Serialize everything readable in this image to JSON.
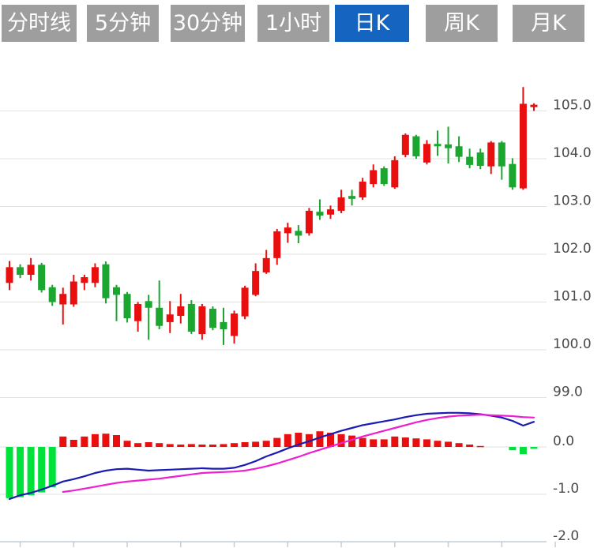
{
  "toolbar": {
    "tabs": [
      {
        "label": "分时线",
        "active": false
      },
      {
        "label": "5分钟",
        "active": false
      },
      {
        "label": "30分钟",
        "active": false
      },
      {
        "label": "1小时",
        "active": false
      },
      {
        "label": "日K",
        "active": true
      },
      {
        "label": "周K",
        "active": false
      },
      {
        "label": "月K",
        "active": false
      }
    ]
  },
  "colors": {
    "up": "#ea0f0f",
    "down": "#1ba62f",
    "macd_up": "#ea0f0f",
    "macd_down": "#00e13c",
    "dif_line": "#1b1bb4",
    "dea_line": "#ee1fd0",
    "grid": "#e2e2e2",
    "axis": "#c3cdd6",
    "label": "#4a4a4a",
    "tab_bg": "#9e9e9e",
    "tab_active_bg": "#1565c0",
    "tab_text": "#ffffff",
    "background": "#ffffff"
  },
  "chart_data": {
    "type": "candlestick",
    "title": "",
    "legend_position": "none",
    "grid": true,
    "price_axis": {
      "ticks": [
        105.0,
        104.0,
        103.0,
        102.0,
        101.0,
        100.0,
        99.0
      ],
      "tick_labels": [
        "105.0",
        "104.0",
        "103.0",
        "102.0",
        "101.0",
        "100.0",
        "99.0"
      ],
      "range": [
        98.6,
        105.9
      ]
    },
    "candles": [
      {
        "o": 101.4,
        "h": 101.86,
        "l": 101.25,
        "c": 101.73
      },
      {
        "o": 101.73,
        "h": 101.79,
        "l": 101.5,
        "c": 101.57
      },
      {
        "o": 101.57,
        "h": 101.92,
        "l": 101.45,
        "c": 101.78
      },
      {
        "o": 101.78,
        "h": 101.82,
        "l": 101.2,
        "c": 101.25
      },
      {
        "o": 101.31,
        "h": 101.36,
        "l": 100.92,
        "c": 101.0
      },
      {
        "o": 100.95,
        "h": 101.3,
        "l": 100.53,
        "c": 101.17
      },
      {
        "o": 100.95,
        "h": 101.57,
        "l": 100.9,
        "c": 101.43
      },
      {
        "o": 101.4,
        "h": 101.57,
        "l": 101.25,
        "c": 101.52
      },
      {
        "o": 101.4,
        "h": 101.81,
        "l": 101.31,
        "c": 101.73
      },
      {
        "o": 101.79,
        "h": 101.85,
        "l": 100.97,
        "c": 101.08
      },
      {
        "o": 101.31,
        "h": 101.36,
        "l": 100.6,
        "c": 101.15
      },
      {
        "o": 101.17,
        "h": 101.21,
        "l": 100.57,
        "c": 100.66
      },
      {
        "o": 100.6,
        "h": 101.0,
        "l": 100.38,
        "c": 100.96
      },
      {
        "o": 101.02,
        "h": 101.15,
        "l": 100.21,
        "c": 100.88
      },
      {
        "o": 100.88,
        "h": 101.45,
        "l": 100.43,
        "c": 100.5
      },
      {
        "o": 100.58,
        "h": 101.02,
        "l": 100.35,
        "c": 100.74
      },
      {
        "o": 100.71,
        "h": 101.17,
        "l": 100.55,
        "c": 100.91
      },
      {
        "o": 100.96,
        "h": 101.04,
        "l": 100.33,
        "c": 100.38
      },
      {
        "o": 100.33,
        "h": 100.96,
        "l": 100.21,
        "c": 100.91
      },
      {
        "o": 100.86,
        "h": 100.91,
        "l": 100.41,
        "c": 100.46
      },
      {
        "o": 100.58,
        "h": 100.88,
        "l": 100.1,
        "c": 100.43
      },
      {
        "o": 100.29,
        "h": 100.82,
        "l": 100.13,
        "c": 100.76
      },
      {
        "o": 100.7,
        "h": 101.34,
        "l": 100.64,
        "c": 101.3
      },
      {
        "o": 101.15,
        "h": 101.81,
        "l": 101.12,
        "c": 101.65
      },
      {
        "o": 101.62,
        "h": 102.09,
        "l": 101.59,
        "c": 101.92
      },
      {
        "o": 101.92,
        "h": 102.53,
        "l": 101.78,
        "c": 102.48
      },
      {
        "o": 102.44,
        "h": 102.66,
        "l": 102.24,
        "c": 102.56
      },
      {
        "o": 102.49,
        "h": 102.61,
        "l": 102.23,
        "c": 102.39
      },
      {
        "o": 102.44,
        "h": 102.97,
        "l": 102.39,
        "c": 102.91
      },
      {
        "o": 102.89,
        "h": 103.15,
        "l": 102.72,
        "c": 102.81
      },
      {
        "o": 102.83,
        "h": 103.02,
        "l": 102.74,
        "c": 102.94
      },
      {
        "o": 102.91,
        "h": 103.35,
        "l": 102.86,
        "c": 103.19
      },
      {
        "o": 103.22,
        "h": 103.35,
        "l": 103.02,
        "c": 103.16
      },
      {
        "o": 103.19,
        "h": 103.6,
        "l": 103.14,
        "c": 103.52
      },
      {
        "o": 103.47,
        "h": 103.88,
        "l": 103.4,
        "c": 103.76
      },
      {
        "o": 103.8,
        "h": 103.84,
        "l": 103.43,
        "c": 103.47
      },
      {
        "o": 103.4,
        "h": 104.05,
        "l": 103.37,
        "c": 103.97
      },
      {
        "o": 104.08,
        "h": 104.53,
        "l": 104.03,
        "c": 104.5
      },
      {
        "o": 104.47,
        "h": 104.5,
        "l": 104.0,
        "c": 104.05
      },
      {
        "o": 103.92,
        "h": 104.39,
        "l": 103.88,
        "c": 104.31
      },
      {
        "o": 104.31,
        "h": 104.59,
        "l": 104.06,
        "c": 104.26
      },
      {
        "o": 104.3,
        "h": 104.67,
        "l": 103.9,
        "c": 104.22
      },
      {
        "o": 104.26,
        "h": 104.47,
        "l": 103.93,
        "c": 104.04
      },
      {
        "o": 104.04,
        "h": 104.21,
        "l": 103.8,
        "c": 103.87
      },
      {
        "o": 104.13,
        "h": 104.21,
        "l": 103.78,
        "c": 103.85
      },
      {
        "o": 103.84,
        "h": 104.37,
        "l": 103.68,
        "c": 104.34
      },
      {
        "o": 104.34,
        "h": 104.37,
        "l": 103.56,
        "c": 103.84
      },
      {
        "o": 103.89,
        "h": 104.01,
        "l": 103.35,
        "c": 103.4
      },
      {
        "o": 103.38,
        "h": 105.5,
        "l": 103.35,
        "c": 105.15
      },
      {
        "o": 105.08,
        "h": 105.16,
        "l": 105.0,
        "c": 105.13
      }
    ],
    "macd": {
      "ticks": [
        0.0,
        -1.0,
        -2.0
      ],
      "tick_labels": [
        "0.0",
        "-1.0",
        "-2.0"
      ],
      "histogram": [
        -1.08,
        -1.06,
        -1.02,
        -0.96,
        -0.85,
        0.22,
        0.15,
        0.22,
        0.27,
        0.28,
        0.25,
        0.13,
        0.08,
        0.1,
        0.08,
        0.06,
        0.05,
        0.06,
        0.05,
        0.05,
        0.06,
        0.08,
        0.1,
        0.11,
        0.13,
        0.19,
        0.27,
        0.3,
        0.27,
        0.33,
        0.3,
        0.27,
        0.24,
        0.19,
        0.16,
        0.16,
        0.22,
        0.2,
        0.18,
        0.16,
        0.13,
        0.11,
        0.08,
        0.05,
        0.02,
        0,
        0,
        -0.07,
        -0.15,
        -0.04
      ],
      "dif": [
        -1.1,
        -1.02,
        -0.97,
        -0.9,
        -0.82,
        -0.73,
        -0.68,
        -0.62,
        -0.55,
        -0.5,
        -0.47,
        -0.46,
        -0.48,
        -0.5,
        -0.49,
        -0.48,
        -0.47,
        -0.46,
        -0.45,
        -0.46,
        -0.46,
        -0.44,
        -0.38,
        -0.3,
        -0.2,
        -0.12,
        -0.03,
        0.05,
        0.12,
        0.2,
        0.27,
        0.34,
        0.4,
        0.46,
        0.5,
        0.54,
        0.58,
        0.63,
        0.67,
        0.7,
        0.71,
        0.72,
        0.72,
        0.71,
        0.69,
        0.66,
        0.62,
        0.55,
        0.45,
        0.53
      ],
      "dea": [
        null,
        null,
        null,
        null,
        null,
        -0.95,
        -0.92,
        -0.88,
        -0.84,
        -0.8,
        -0.76,
        -0.73,
        -0.71,
        -0.69,
        -0.67,
        -0.64,
        -0.61,
        -0.58,
        -0.55,
        -0.54,
        -0.53,
        -0.52,
        -0.5,
        -0.46,
        -0.41,
        -0.35,
        -0.28,
        -0.21,
        -0.13,
        -0.06,
        0.01,
        0.08,
        0.15,
        0.22,
        0.28,
        0.34,
        0.4,
        0.46,
        0.52,
        0.57,
        0.61,
        0.64,
        0.66,
        0.67,
        0.68,
        0.67,
        0.66,
        0.65,
        0.63,
        0.62
      ]
    }
  }
}
